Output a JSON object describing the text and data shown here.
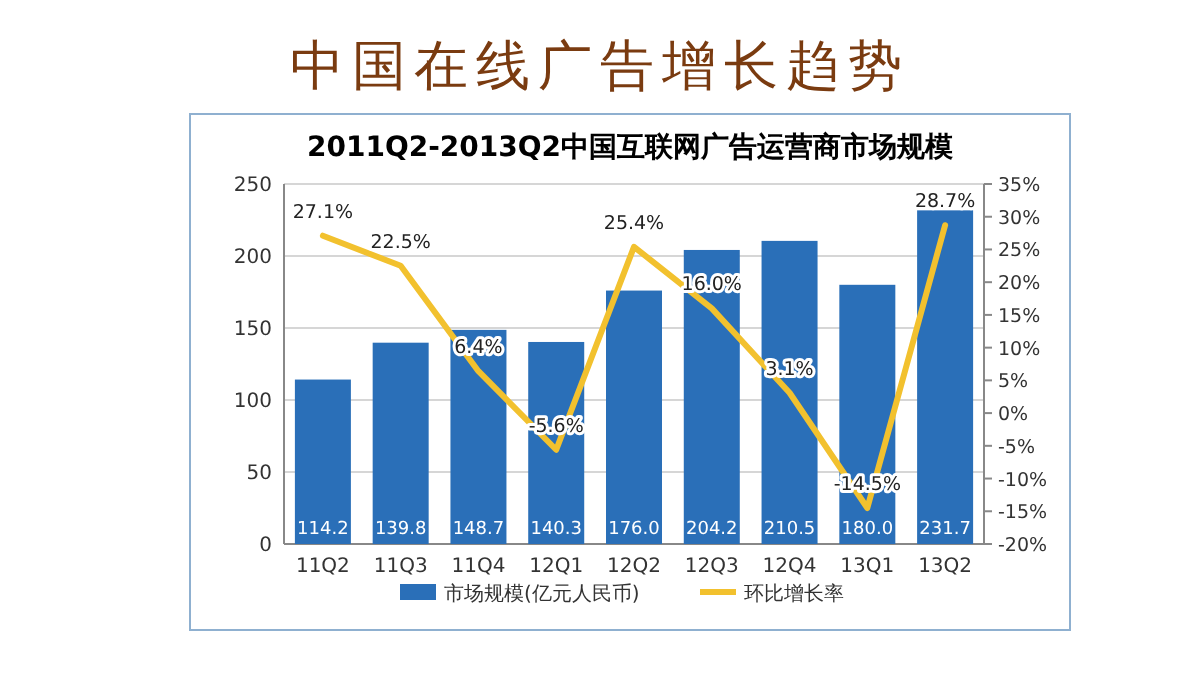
{
  "chart_data": {
    "type": "bar",
    "title": "中国在线广告增长趋势",
    "subtitle": "2011Q2-2013Q2中国互联网广告运营商市场规模",
    "categories": [
      "11Q2",
      "11Q3",
      "11Q4",
      "12Q1",
      "12Q2",
      "12Q3",
      "12Q4",
      "13Q1",
      "13Q2"
    ],
    "series": [
      {
        "name": "市场规模(亿元人民币)",
        "color": "#2a6fb8",
        "values": [
          114.2,
          139.8,
          148.7,
          140.3,
          176.0,
          204.2,
          210.5,
          180.0,
          231.7
        ],
        "value_labels": [
          "114.2",
          "139.8",
          "148.7",
          "140.3",
          "176.0",
          "204.2",
          "210.5",
          "180.0",
          "231.7"
        ]
      },
      {
        "name": "环比增长率",
        "type": "line",
        "axis": "y2",
        "color": "#f2c12e",
        "values": [
          27.1,
          22.5,
          6.4,
          -5.6,
          25.4,
          16.0,
          3.1,
          -14.5,
          28.7
        ],
        "value_labels": [
          "27.1%",
          "22.5%",
          "6.4%",
          "-5.6%",
          "25.4%",
          "16.0%",
          "3.1%",
          "-14.5%",
          "28.7%"
        ]
      }
    ],
    "ylim": [
      0,
      250
    ],
    "yticks": [
      0,
      50,
      100,
      150,
      200,
      250
    ],
    "y2lim": [
      -20,
      35
    ],
    "y2ticks": [
      {
        "value": -20,
        "label": "-20%"
      },
      {
        "value": -15,
        "label": "-15%"
      },
      {
        "value": -10,
        "label": "-10%"
      },
      {
        "value": -5,
        "label": "-5%"
      },
      {
        "value": 0,
        "label": "0%"
      },
      {
        "value": 5,
        "label": "5%"
      },
      {
        "value": 10,
        "label": "10%"
      },
      {
        "value": 15,
        "label": "15%"
      },
      {
        "value": 20,
        "label": "20%"
      },
      {
        "value": 25,
        "label": "25%"
      },
      {
        "value": 30,
        "label": "30%"
      },
      {
        "value": 35,
        "label": "35%"
      }
    ],
    "grid": "y",
    "legend": "bottom"
  }
}
